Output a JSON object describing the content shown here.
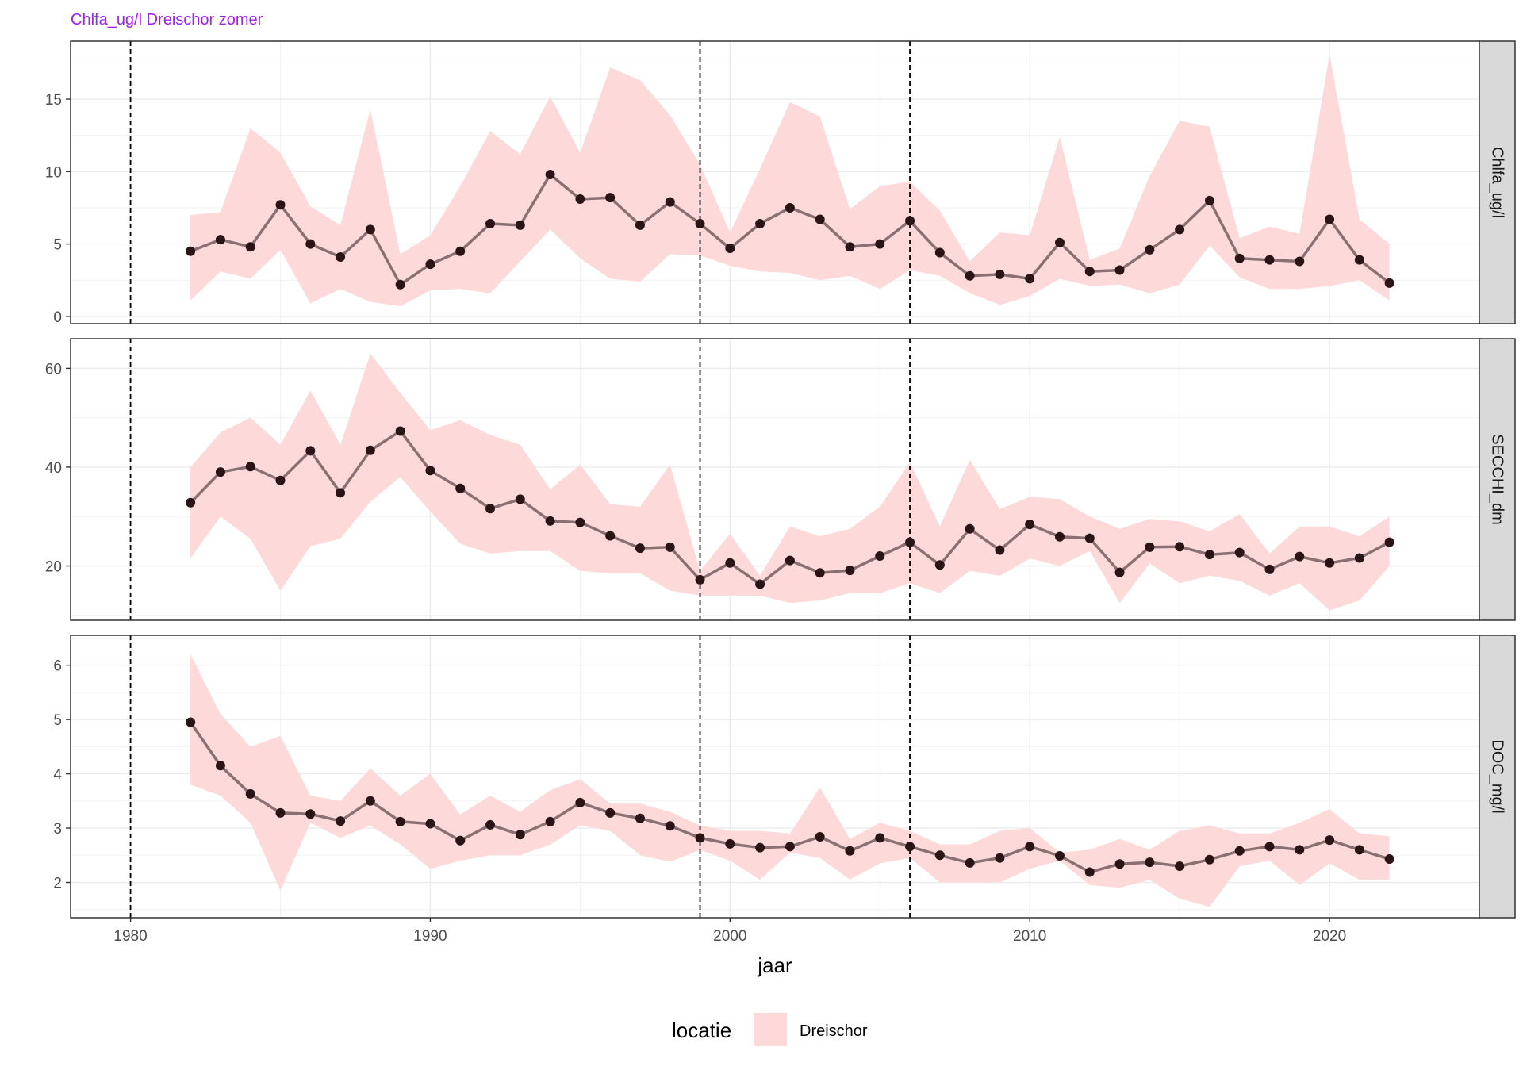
{
  "chart_data": {
    "type": "line",
    "title": "Chlfa_ug/l Dreischor zomer",
    "xlabel": "jaar",
    "xlim": [
      1978,
      2025
    ],
    "x_ticks": [
      1980,
      1990,
      2000,
      2010,
      2020
    ],
    "x_tick_labels": [
      "1980",
      "1990",
      "2000",
      "2010",
      "2020"
    ],
    "vlines": [
      1980,
      1999,
      2006
    ],
    "grid": true,
    "colors": {
      "title": "#a020f0",
      "ribbon": "#fdd9d9",
      "line": "#8a6f73",
      "point": "#2a1416",
      "strip": "#d9d9d9",
      "grid": "#ebebeb"
    },
    "legend": {
      "position": "bottom",
      "title": "locatie",
      "entries": [
        "Dreischor"
      ]
    },
    "x": [
      1982,
      1983,
      1984,
      1985,
      1986,
      1987,
      1988,
      1989,
      1990,
      1991,
      1992,
      1993,
      1994,
      1995,
      1996,
      1997,
      1998,
      1999,
      2000,
      2001,
      2002,
      2003,
      2004,
      2005,
      2006,
      2007,
      2008,
      2009,
      2010,
      2011,
      2012,
      2013,
      2014,
      2015,
      2016,
      2017,
      2018,
      2019,
      2020,
      2021,
      2022
    ],
    "panels": [
      {
        "strip": "Chlfa_ug/l",
        "ylim": [
          -0.5,
          19
        ],
        "y_ticks": [
          0,
          5,
          10,
          15
        ],
        "y_tick_labels": [
          "0",
          "5",
          "10",
          "15"
        ],
        "values": [
          4.5,
          5.3,
          4.8,
          7.7,
          5.0,
          4.1,
          6.0,
          2.2,
          3.6,
          4.5,
          6.4,
          6.3,
          9.8,
          8.1,
          8.2,
          6.3,
          7.9,
          6.4,
          4.7,
          6.4,
          7.5,
          6.7,
          4.8,
          5.0,
          6.6,
          4.4,
          2.8,
          2.9,
          2.6,
          5.1,
          3.1,
          3.2,
          4.6,
          6.0,
          8.0,
          4.0,
          3.9,
          3.8,
          6.7,
          3.9,
          2.3
        ],
        "upper": [
          7.0,
          7.2,
          13.0,
          11.3,
          7.6,
          6.3,
          14.3,
          4.3,
          5.6,
          9.0,
          12.8,
          11.2,
          15.2,
          11.3,
          17.2,
          16.3,
          13.9,
          10.5,
          5.8,
          10.2,
          14.8,
          13.8,
          7.4,
          9.0,
          9.3,
          7.3,
          3.8,
          5.8,
          5.6,
          12.4,
          3.9,
          4.7,
          9.7,
          13.5,
          13.1,
          5.4,
          6.2,
          5.7,
          18.1,
          6.7,
          5.0
        ],
        "lower": [
          1.1,
          3.1,
          2.6,
          4.6,
          0.9,
          1.9,
          1.0,
          0.7,
          1.8,
          1.9,
          1.6,
          3.8,
          6.0,
          4.0,
          2.6,
          2.4,
          4.3,
          4.2,
          3.5,
          3.1,
          3.0,
          2.5,
          2.8,
          1.9,
          3.2,
          2.8,
          1.6,
          0.8,
          1.4,
          2.6,
          2.1,
          2.2,
          1.6,
          2.2,
          4.9,
          2.7,
          1.9,
          1.9,
          2.1,
          2.5,
          1.1
        ]
      },
      {
        "strip": "SECCHI_dm",
        "ylim": [
          9,
          66
        ],
        "y_ticks": [
          20,
          40,
          60
        ],
        "y_tick_labels": [
          "20",
          "40",
          "60"
        ],
        "values": [
          32.8,
          39.0,
          40.1,
          37.3,
          43.3,
          34.8,
          43.4,
          47.3,
          39.3,
          35.7,
          31.6,
          33.5,
          29.1,
          28.8,
          26.1,
          23.6,
          23.8,
          17.2,
          20.6,
          16.3,
          21.1,
          18.6,
          19.1,
          22.0,
          24.8,
          20.2,
          27.5,
          23.2,
          28.4,
          25.9,
          25.6,
          18.7,
          23.8,
          23.9,
          22.3,
          22.7,
          19.3,
          21.9,
          20.6,
          21.6,
          24.8
        ],
        "upper": [
          40.0,
          47.0,
          50.0,
          44.5,
          55.5,
          44.5,
          63.0,
          55.0,
          47.5,
          49.5,
          46.5,
          44.5,
          35.5,
          40.5,
          32.5,
          32.0,
          40.5,
          19.0,
          26.5,
          18.0,
          28.0,
          26.0,
          27.5,
          32.0,
          41.0,
          28.0,
          41.5,
          31.5,
          34.0,
          33.5,
          30.0,
          27.5,
          29.5,
          29.0,
          27.0,
          30.5,
          22.5,
          28.0,
          28.0,
          26.0,
          30.0
        ],
        "lower": [
          21.5,
          30.0,
          25.5,
          15.0,
          24.0,
          25.5,
          33.0,
          38.0,
          31.0,
          24.5,
          22.5,
          23.0,
          23.0,
          19.0,
          18.5,
          18.5,
          15.0,
          14.0,
          14.0,
          14.0,
          12.5,
          13.0,
          14.5,
          14.5,
          16.5,
          14.5,
          19.0,
          18.0,
          21.5,
          20.0,
          23.0,
          12.5,
          20.5,
          16.5,
          18.0,
          17.0,
          14.0,
          16.5,
          11.0,
          13.0,
          20.0
        ]
      },
      {
        "strip": "DOC_mg/l",
        "ylim": [
          1.35,
          6.55
        ],
        "y_ticks": [
          2,
          3,
          4,
          5,
          6
        ],
        "y_tick_labels": [
          "2",
          "3",
          "4",
          "5",
          "6"
        ],
        "values": [
          4.95,
          4.15,
          3.63,
          3.28,
          3.26,
          3.13,
          3.5,
          3.12,
          3.08,
          2.77,
          3.06,
          2.88,
          3.12,
          3.47,
          3.28,
          3.18,
          3.04,
          2.82,
          2.71,
          2.64,
          2.66,
          2.84,
          2.58,
          2.82,
          2.66,
          2.5,
          2.36,
          2.45,
          2.66,
          2.49,
          2.19,
          2.34,
          2.37,
          2.3,
          2.42,
          2.58,
          2.66,
          2.6,
          2.78,
          2.6,
          2.43
        ],
        "upper": [
          6.2,
          5.1,
          4.5,
          4.7,
          3.6,
          3.5,
          4.1,
          3.6,
          4.0,
          3.25,
          3.6,
          3.3,
          3.7,
          3.9,
          3.45,
          3.45,
          3.3,
          3.05,
          2.95,
          2.95,
          2.9,
          3.75,
          2.8,
          3.1,
          2.95,
          2.7,
          2.7,
          2.95,
          3.0,
          2.55,
          2.6,
          2.8,
          2.6,
          2.95,
          3.05,
          2.9,
          2.9,
          3.1,
          3.35,
          2.9,
          2.85
        ],
        "lower": [
          3.8,
          3.6,
          3.1,
          1.85,
          3.1,
          2.82,
          3.05,
          2.7,
          2.25,
          2.4,
          2.5,
          2.5,
          2.7,
          3.05,
          2.95,
          2.5,
          2.38,
          2.6,
          2.4,
          2.05,
          2.55,
          2.45,
          2.05,
          2.35,
          2.45,
          2.0,
          2.0,
          2.0,
          2.25,
          2.4,
          1.95,
          1.9,
          2.05,
          1.7,
          1.55,
          2.3,
          2.4,
          1.95,
          2.35,
          2.05,
          2.05
        ]
      }
    ]
  }
}
